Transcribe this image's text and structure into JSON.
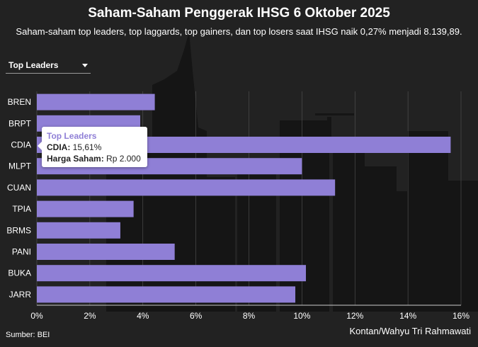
{
  "title": "Saham-Saham Penggerak IHSG 6 Oktober 2025",
  "subtitle": "Saham-saham top leaders, top laggards, top gainers, dan top losers saat IHSG naik 0,27% menjadi 8.139,89.",
  "dropdown": {
    "selected": "Top Leaders"
  },
  "tooltip": {
    "title": "Top Leaders",
    "ticker_key": "CDIA:",
    "ticker_value": "15,61%",
    "price_key": "Harga Saham:",
    "price_value": "Rp 2.000"
  },
  "source": "Sumber: BEI",
  "credit": "Kontan/Wahyu Tri Rahmawati",
  "colors": {
    "bar": "#8f7fd6",
    "background": "#222222",
    "skyline": "#151515"
  },
  "chart_data": {
    "type": "bar",
    "orientation": "horizontal",
    "categories": [
      "BREN",
      "BRPT",
      "CDIA",
      "MLPT",
      "CUAN",
      "TPIA",
      "BRMS",
      "PANI",
      "BUKA",
      "JARR"
    ],
    "values": [
      4.45,
      3.9,
      15.61,
      10.0,
      11.25,
      3.65,
      3.15,
      5.2,
      10.15,
      9.75
    ],
    "xlim": [
      0,
      16
    ],
    "xticks": [
      "0%",
      "2%",
      "4%",
      "6%",
      "8%",
      "10%",
      "12%",
      "14%",
      "16%"
    ],
    "xtick_values": [
      0,
      2,
      4,
      6,
      8,
      10,
      12,
      14,
      16
    ],
    "grid": true
  }
}
